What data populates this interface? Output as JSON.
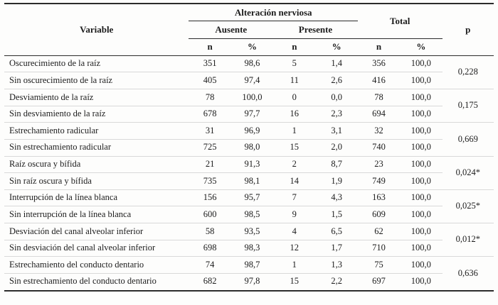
{
  "table": {
    "header": {
      "variable": "Variable",
      "group": "Alteración nerviosa",
      "ausente": "Ausente",
      "presente": "Presente",
      "total": "Total",
      "p": "p",
      "n": "n",
      "pct": "%"
    },
    "rows": [
      {
        "variable": "Oscurecimiento de la raíz",
        "ausente_n": "351",
        "ausente_pct": "98,6",
        "presente_n": "5",
        "presente_pct": "1,4",
        "total_n": "356",
        "total_pct": "100,0"
      },
      {
        "variable": "Sin oscurecimiento de la raíz",
        "ausente_n": "405",
        "ausente_pct": "97,4",
        "presente_n": "11",
        "presente_pct": "2,6",
        "total_n": "416",
        "total_pct": "100,0"
      },
      {
        "variable": "Desviamiento de la raíz",
        "ausente_n": "78",
        "ausente_pct": "100,0",
        "presente_n": "0",
        "presente_pct": "0,0",
        "total_n": "78",
        "total_pct": "100,0"
      },
      {
        "variable": "Sin desviamiento de la raíz",
        "ausente_n": "678",
        "ausente_pct": "97,7",
        "presente_n": "16",
        "presente_pct": "2,3",
        "total_n": "694",
        "total_pct": "100,0"
      },
      {
        "variable": "Estrechamiento radicular",
        "ausente_n": "31",
        "ausente_pct": "96,9",
        "presente_n": "1",
        "presente_pct": "3,1",
        "total_n": "32",
        "total_pct": "100,0"
      },
      {
        "variable": "Sin estrechamiento radicular",
        "ausente_n": "725",
        "ausente_pct": "98,0",
        "presente_n": "15",
        "presente_pct": "2,0",
        "total_n": "740",
        "total_pct": "100,0"
      },
      {
        "variable": "Raíz oscura y bífida",
        "ausente_n": "21",
        "ausente_pct": "91,3",
        "presente_n": "2",
        "presente_pct": "8,7",
        "total_n": "23",
        "total_pct": "100,0"
      },
      {
        "variable": "Sin raíz oscura y bífida",
        "ausente_n": "735",
        "ausente_pct": "98,1",
        "presente_n": "14",
        "presente_pct": "1,9",
        "total_n": "749",
        "total_pct": "100,0"
      },
      {
        "variable": "Interrupción de la línea blanca",
        "ausente_n": "156",
        "ausente_pct": "95,7",
        "presente_n": "7",
        "presente_pct": "4,3",
        "total_n": "163",
        "total_pct": "100,0"
      },
      {
        "variable": "Sin interrupción de la línea blanca",
        "ausente_n": "600",
        "ausente_pct": "98,5",
        "presente_n": "9",
        "presente_pct": "1,5",
        "total_n": "609",
        "total_pct": "100,0"
      },
      {
        "variable": "Desviación del canal alveolar inferior",
        "ausente_n": "58",
        "ausente_pct": "93,5",
        "presente_n": "4",
        "presente_pct": "6,5",
        "total_n": "62",
        "total_pct": "100,0"
      },
      {
        "variable": "Sin desviación del canal alveolar inferior",
        "ausente_n": "698",
        "ausente_pct": "98,3",
        "presente_n": "12",
        "presente_pct": "1,7",
        "total_n": "710",
        "total_pct": "100,0"
      },
      {
        "variable": "Estrechamiento del conducto dentario",
        "ausente_n": "74",
        "ausente_pct": "98,7",
        "presente_n": "1",
        "presente_pct": "1,3",
        "total_n": "75",
        "total_pct": "100,0"
      },
      {
        "variable": "Sin estrechamiento del conducto dentario",
        "ausente_n": "682",
        "ausente_pct": "97,8",
        "presente_n": "15",
        "presente_pct": "2,2",
        "total_n": "697",
        "total_pct": "100,0"
      }
    ],
    "p_values": [
      "0,228",
      "0,175",
      "0,669",
      "0,024*",
      "0,025*",
      "0,012*",
      "0,636"
    ],
    "colors": {
      "border_strong": "#2b2b2b",
      "border_light": "#d9d9d9",
      "text": "#1c1c1c",
      "background": "#fdfdfc"
    }
  }
}
